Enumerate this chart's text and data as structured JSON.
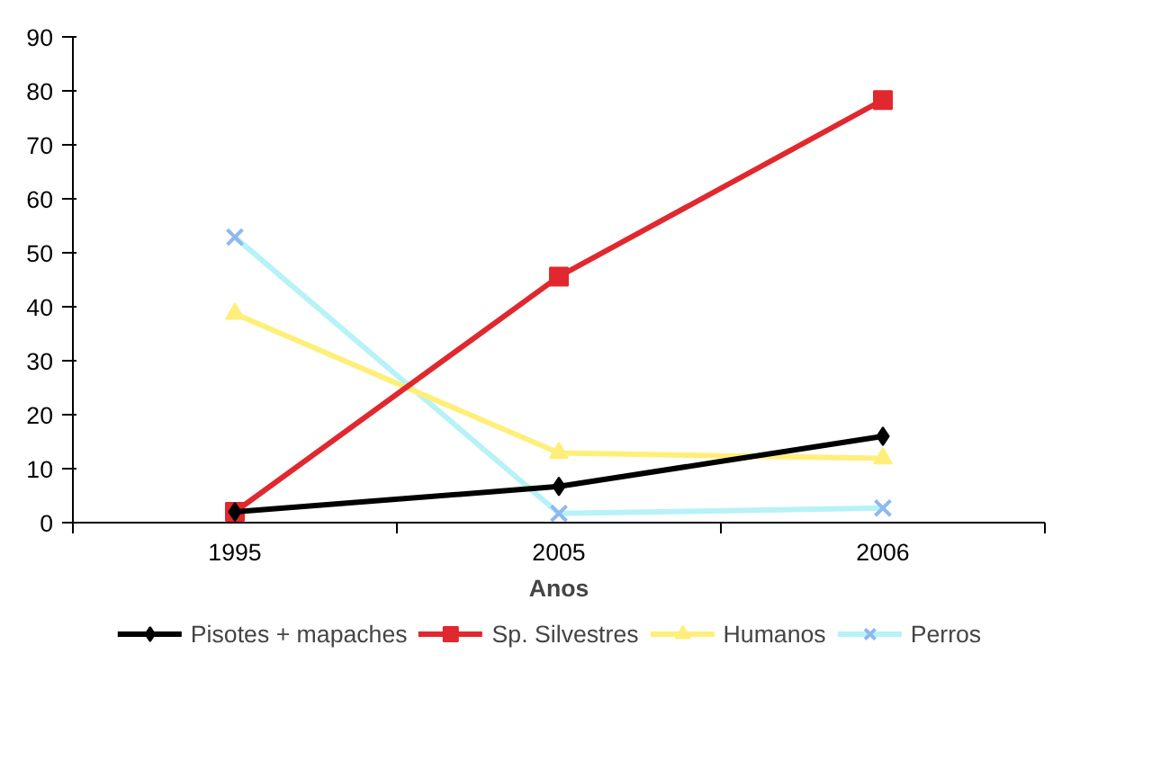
{
  "chart_data": {
    "type": "line",
    "xlabel": "Anos",
    "categories": [
      "1995",
      "2005",
      "2006"
    ],
    "ylim": [
      0,
      90
    ],
    "yticks": [
      0,
      10,
      20,
      30,
      40,
      50,
      60,
      70,
      80,
      90
    ],
    "grid": false,
    "legend": "bottom",
    "series": [
      {
        "name": "Pisotes + mapaches",
        "color": "#000000",
        "marker": "diamond",
        "values": [
          2,
          6.7,
          16
        ]
      },
      {
        "name": "Sp. Silvestres",
        "color": "#e0282e",
        "marker": "square",
        "values": [
          2,
          45.6,
          78.3
        ]
      },
      {
        "name": "Humanos",
        "color": "#ffef7a",
        "marker": "triangle",
        "values": [
          38.7,
          12.9,
          11.9
        ]
      },
      {
        "name": "Perros",
        "color": "#b7f2f7",
        "marker": "cross",
        "values": [
          52.9,
          1.7,
          2.7
        ]
      }
    ]
  }
}
